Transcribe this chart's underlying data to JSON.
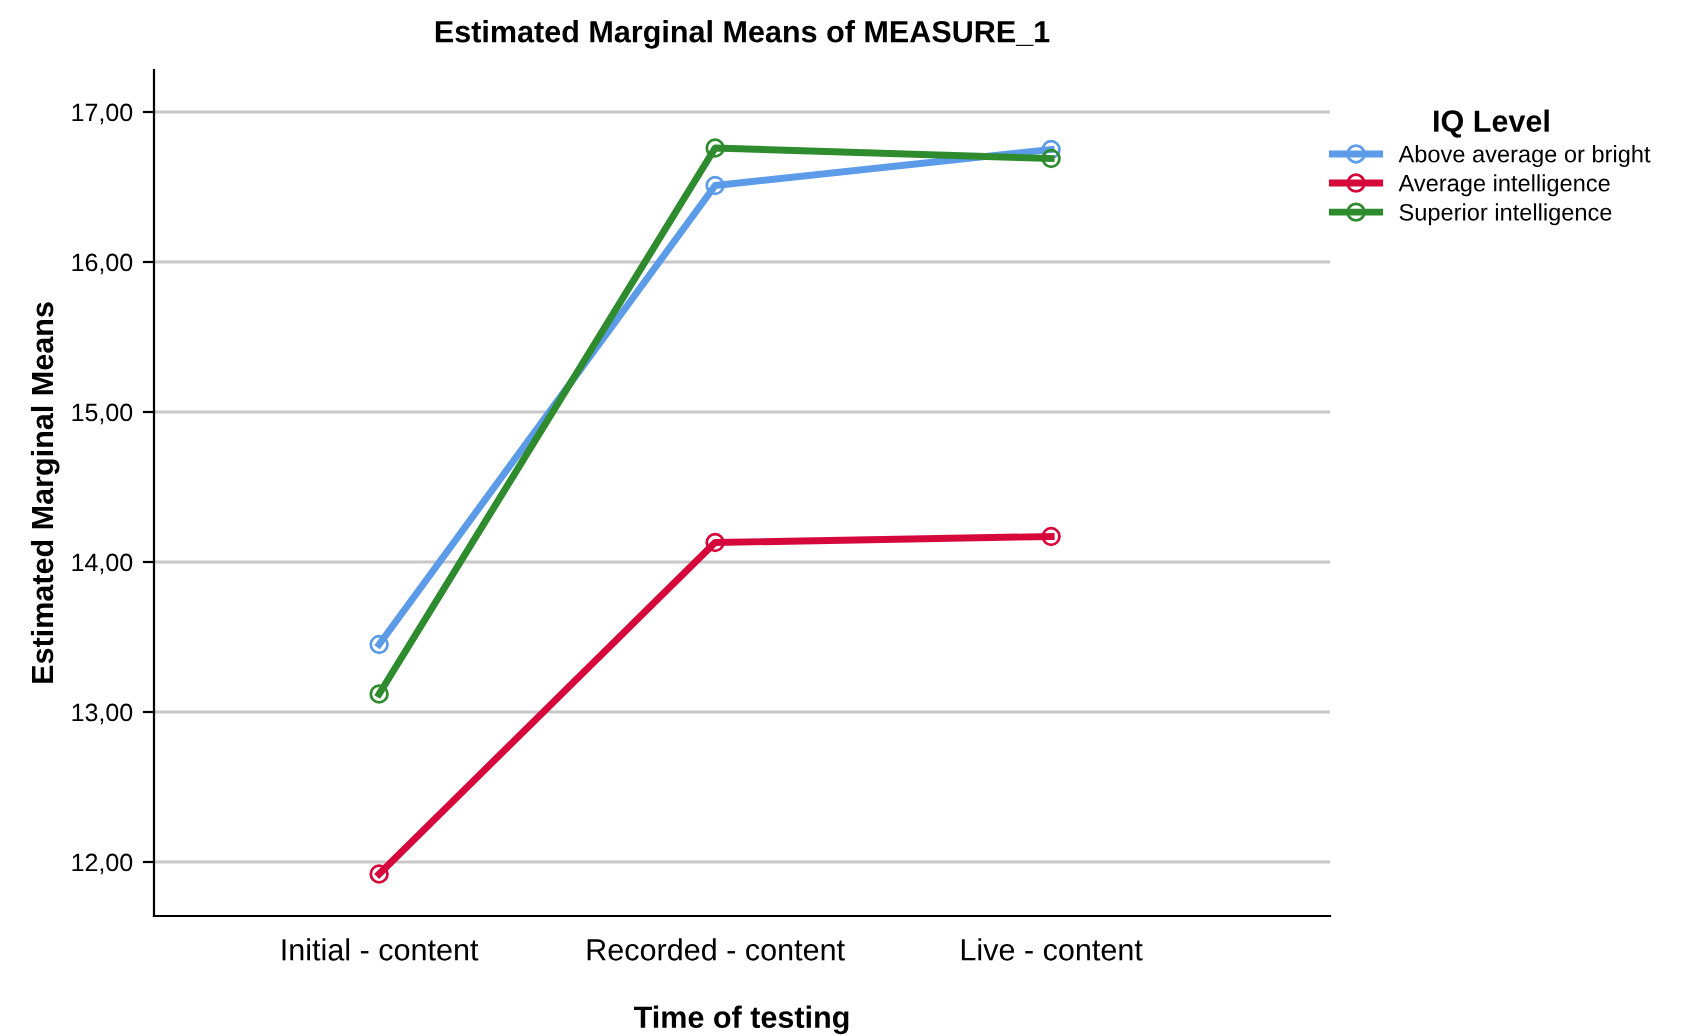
{
  "chart_data": {
    "type": "line",
    "title": "Estimated Marginal Means of MEASURE_1",
    "xlabel": "Time of testing",
    "ylabel": "Estimated Marginal Means",
    "legend_title": "IQ Level",
    "categories": [
      "Initial - content",
      "Recorded - content",
      "Live - content"
    ],
    "series": [
      {
        "name": "Above average or bright",
        "color": "#5b9be8",
        "values": [
          13.45,
          16.51,
          16.75
        ]
      },
      {
        "name": "Average intelligence",
        "color": "#d6083b",
        "values": [
          11.92,
          14.13,
          14.17
        ]
      },
      {
        "name": "Superior intelligence",
        "color": "#2e8b2e",
        "values": [
          13.12,
          16.76,
          16.69
        ]
      }
    ],
    "ylim": [
      11.64,
      17.28
    ],
    "yticks": [
      {
        "value": 12,
        "label": "12,00"
      },
      {
        "value": 13,
        "label": "13,00"
      },
      {
        "value": 14,
        "label": "14,00"
      },
      {
        "value": 15,
        "label": "15,00"
      },
      {
        "value": 16,
        "label": "16,00"
      },
      {
        "value": 17,
        "label": "17,00"
      }
    ],
    "grid": "y",
    "legend": "top right",
    "marker": "circle",
    "line_style": "solid"
  }
}
